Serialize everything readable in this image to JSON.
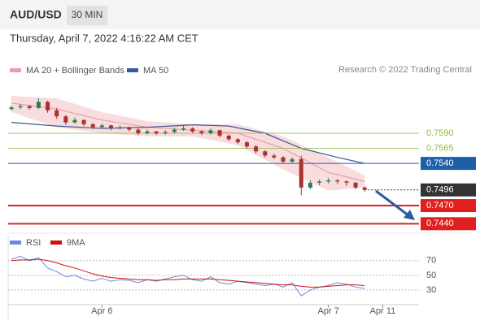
{
  "header": {
    "symbol": "AUD/USD",
    "interval": "30 MIN",
    "datetime": "Thursday, April 7, 2022 4:16:22 AM CET"
  },
  "chart_data": [
    {
      "type": "candlestick",
      "source": "Research © 2022 Trading Central",
      "bullish_color": "#2e7d4f",
      "bearish_color": "#a8322d",
      "xlim": [
        0,
        45
      ],
      "ylim": [
        0.7431,
        0.7652
      ],
      "candles": [
        [
          0.763,
          0.7636,
          0.7628,
          0.7633
        ],
        [
          0.7633,
          0.7638,
          0.763,
          0.7635
        ],
        [
          0.7635,
          0.7637,
          0.7629,
          0.7632
        ],
        [
          0.7632,
          0.7648,
          0.763,
          0.7642
        ],
        [
          0.7642,
          0.7644,
          0.7624,
          0.7628
        ],
        [
          0.7628,
          0.7632,
          0.7614,
          0.7618
        ],
        [
          0.7618,
          0.762,
          0.7604,
          0.7608
        ],
        [
          0.7608,
          0.7616,
          0.7606,
          0.7612
        ],
        [
          0.7612,
          0.7613,
          0.7602,
          0.7605
        ],
        [
          0.7605,
          0.7607,
          0.7597,
          0.76
        ],
        [
          0.76,
          0.7606,
          0.7598,
          0.7603
        ],
        [
          0.7603,
          0.7604,
          0.7595,
          0.7598
        ],
        [
          0.7598,
          0.7603,
          0.7596,
          0.76
        ],
        [
          0.76,
          0.7601,
          0.7593,
          0.7596
        ],
        [
          0.7596,
          0.7598,
          0.7587,
          0.759
        ],
        [
          0.759,
          0.7596,
          0.7588,
          0.7593
        ],
        [
          0.7593,
          0.7594,
          0.7587,
          0.759
        ],
        [
          0.759,
          0.7595,
          0.7588,
          0.7592
        ],
        [
          0.7592,
          0.7599,
          0.759,
          0.7596
        ],
        [
          0.7596,
          0.7603,
          0.7594,
          0.7598
        ],
        [
          0.7598,
          0.76,
          0.759,
          0.7593
        ],
        [
          0.7593,
          0.7595,
          0.7587,
          0.759
        ],
        [
          0.759,
          0.7598,
          0.7588,
          0.7595
        ],
        [
          0.7595,
          0.7596,
          0.7583,
          0.7586
        ],
        [
          0.7586,
          0.7588,
          0.7577,
          0.758
        ],
        [
          0.758,
          0.7582,
          0.7572,
          0.7575
        ],
        [
          0.7575,
          0.7577,
          0.7565,
          0.7568
        ],
        [
          0.7568,
          0.757,
          0.7556,
          0.756
        ],
        [
          0.756,
          0.7562,
          0.755,
          0.7553
        ],
        [
          0.7553,
          0.7556,
          0.7547,
          0.755
        ],
        [
          0.755,
          0.7552,
          0.754,
          0.7543
        ],
        [
          0.7543,
          0.755,
          0.7541,
          0.7547
        ],
        [
          0.7547,
          0.7553,
          0.7487,
          0.75
        ],
        [
          0.75,
          0.7512,
          0.7497,
          0.7508
        ],
        [
          0.7508,
          0.7513,
          0.7504,
          0.751
        ],
        [
          0.751,
          0.7516,
          0.7507,
          0.7512
        ],
        [
          0.7512,
          0.7514,
          0.7506,
          0.751
        ],
        [
          0.751,
          0.7512,
          0.7503,
          0.7508
        ],
        [
          0.7508,
          0.7509,
          0.7497,
          0.75
        ],
        [
          0.75,
          0.7502,
          0.7493,
          0.7496
        ]
      ],
      "series": [
        {
          "name": "MA 20 + Bollinger Bands",
          "color": "#e8a0a8",
          "band_color": "#f6d3d6",
          "x": [
            0,
            5,
            10,
            15,
            20,
            25,
            30,
            35,
            39
          ],
          "values": [
            0.764,
            0.763,
            0.7612,
            0.76,
            0.7595,
            0.759,
            0.7565,
            0.7525,
            0.751
          ],
          "upper": [
            0.7652,
            0.7648,
            0.7625,
            0.761,
            0.7605,
            0.7605,
            0.7585,
            0.755,
            0.752
          ],
          "lower": [
            0.7625,
            0.76,
            0.759,
            0.7585,
            0.7585,
            0.757,
            0.753,
            0.7495,
            0.75
          ]
        },
        {
          "name": "MA 50",
          "color": "#3a5a9b",
          "x": [
            0,
            5,
            10,
            15,
            20,
            24,
            28,
            32,
            36,
            39
          ],
          "values": [
            0.7608,
            0.7602,
            0.7598,
            0.76,
            0.7604,
            0.7602,
            0.759,
            0.7565,
            0.755,
            0.754
          ]
        }
      ],
      "levels": [
        {
          "value": 0.759,
          "label": "0.7590",
          "color": "#8fbc45",
          "style": "text"
        },
        {
          "value": 0.7565,
          "label": "0.7565",
          "color": "#8fbc45",
          "style": "text"
        },
        {
          "value": 0.754,
          "label": "0.7540",
          "color": "#1f5fa8",
          "style": "box"
        },
        {
          "value": 0.7496,
          "label": "0.7496",
          "color": "#333333",
          "style": "dotted"
        },
        {
          "value": 0.747,
          "label": "0.7470",
          "color": "#e02020",
          "style": "box"
        },
        {
          "value": 0.744,
          "label": "0.7440",
          "color": "#e02020",
          "style": "box"
        }
      ]
    },
    {
      "type": "line",
      "xlim": [
        0,
        45
      ],
      "ylim": [
        10,
        93
      ],
      "yticks": [
        30,
        50,
        70
      ],
      "xticks": [
        {
          "value": 10,
          "label": "Apr 6"
        },
        {
          "value": 35,
          "label": "Apr 7"
        },
        {
          "value": 41,
          "label": "Apr 11"
        }
      ],
      "series": [
        {
          "name": "RSI",
          "color": "#6b8bd8",
          "values": [
            72,
            76,
            70,
            74,
            60,
            55,
            48,
            50,
            45,
            42,
            46,
            42,
            44,
            43,
            40,
            44,
            42,
            45,
            48,
            50,
            44,
            42,
            48,
            40,
            38,
            42,
            40,
            38,
            36,
            38,
            34,
            40,
            22,
            30,
            34,
            36,
            40,
            38,
            34,
            32
          ]
        },
        {
          "name": "9MA",
          "color": "#cc1111",
          "values": [
            70,
            71,
            71,
            72,
            70,
            67,
            63,
            60,
            56,
            52,
            49,
            47,
            46,
            45,
            44,
            44,
            43,
            44,
            44,
            45,
            45,
            45,
            45,
            44,
            43,
            42,
            41,
            40,
            39,
            38,
            37,
            37,
            35,
            34,
            34,
            35,
            36,
            37,
            37,
            36
          ]
        }
      ]
    }
  ]
}
